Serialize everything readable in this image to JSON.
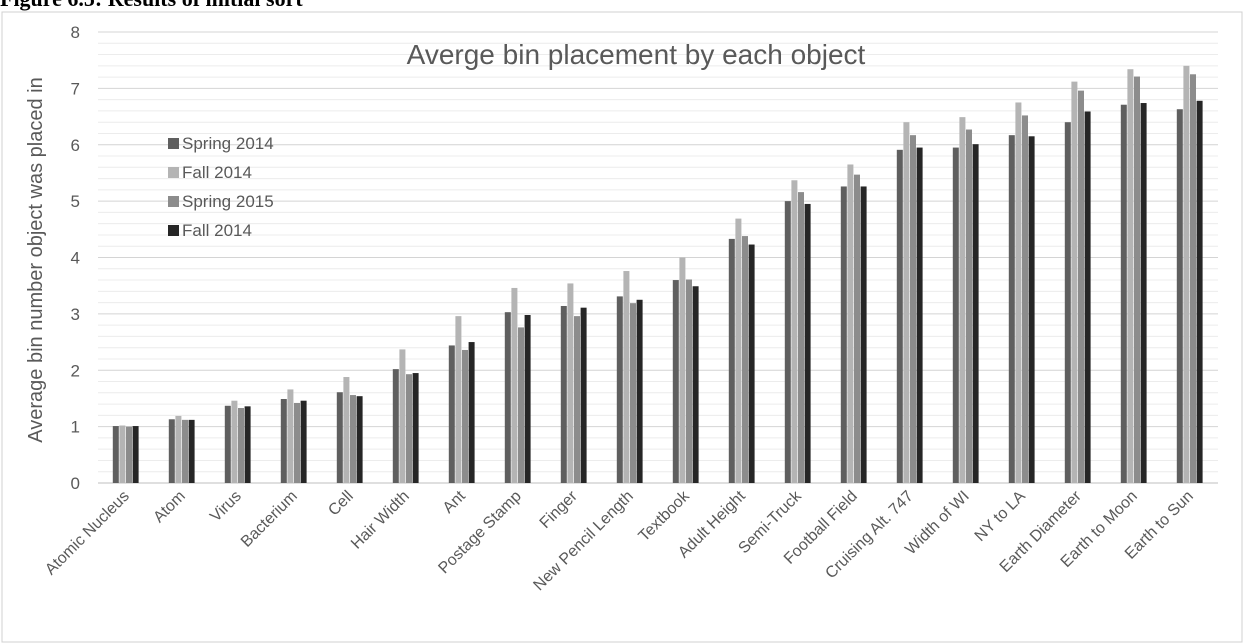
{
  "figure": {
    "caption": "Figure 6.5: Results of initial sort"
  },
  "chart_data": {
    "type": "bar",
    "title": "Averge bin placement by each object",
    "xlabel": "",
    "ylabel": "Average bin number object was placed in",
    "ylim": [
      0,
      8
    ],
    "yticks": [
      0,
      1,
      2,
      3,
      4,
      5,
      6,
      7,
      8
    ],
    "grid": {
      "major": true,
      "minor": true
    },
    "legend": {
      "position": "left"
    },
    "categories": [
      "Atomic Nucleus",
      "Atom",
      "Virus",
      "Bacterium",
      "Cell",
      "Hair Width",
      "Ant",
      "Postage Stamp",
      "Finger",
      "New Pencil Length",
      "Textbook",
      "Adult Height",
      "Semi-Truck",
      "Football Field",
      "Cruising Alt. 747",
      "Width of WI",
      "NY to LA",
      "Earth Diameter",
      "Earth to Moon",
      "Earth to Sun"
    ],
    "series": [
      {
        "name": "Spring 2014",
        "color": "#5f5f5f",
        "values": [
          1.01,
          1.13,
          1.37,
          1.49,
          1.61,
          2.02,
          2.44,
          3.03,
          3.14,
          3.31,
          3.6,
          4.33,
          5.0,
          5.26,
          5.91,
          5.95,
          6.17,
          6.4,
          6.71,
          6.63
        ]
      },
      {
        "name": "Fall 2014",
        "color": "#b4b4b4",
        "values": [
          1.02,
          1.19,
          1.46,
          1.66,
          1.88,
          2.37,
          2.96,
          3.46,
          3.54,
          3.76,
          4.0,
          4.69,
          5.37,
          5.65,
          6.4,
          6.49,
          6.75,
          7.12,
          7.34,
          7.4
        ]
      },
      {
        "name": "Spring 2015",
        "color": "#8c8c8c",
        "values": [
          1.0,
          1.12,
          1.33,
          1.42,
          1.56,
          1.93,
          2.36,
          2.76,
          2.96,
          3.19,
          3.61,
          4.38,
          5.16,
          5.47,
          6.17,
          6.27,
          6.52,
          6.96,
          7.21,
          7.25
        ]
      },
      {
        "name": "Fall 2014",
        "color": "#262626",
        "values": [
          1.01,
          1.12,
          1.36,
          1.46,
          1.54,
          1.95,
          2.5,
          2.98,
          3.11,
          3.25,
          3.49,
          4.23,
          4.95,
          5.26,
          5.95,
          6.01,
          6.15,
          6.59,
          6.74,
          6.78
        ]
      }
    ]
  }
}
